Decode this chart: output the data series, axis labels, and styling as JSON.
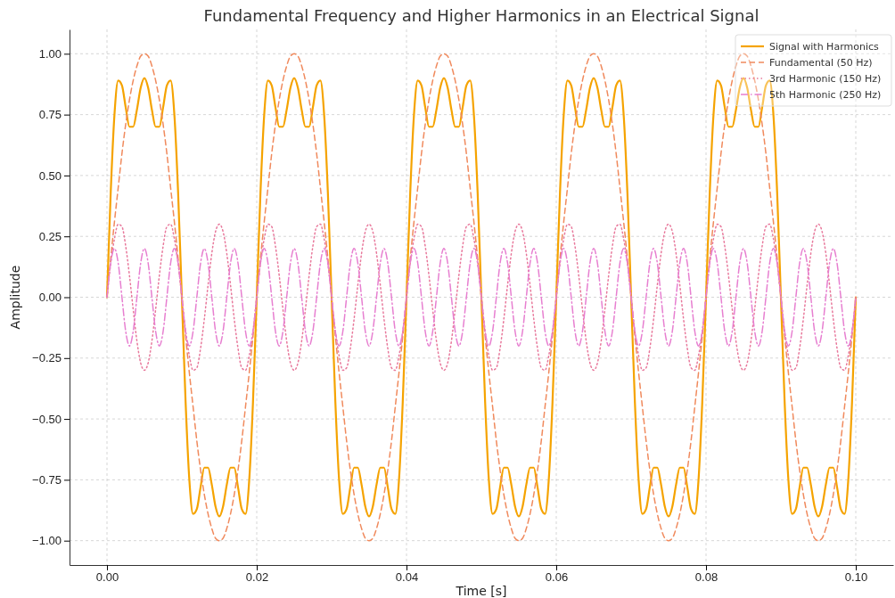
{
  "chart_data": {
    "type": "line",
    "title": "Fundamental Frequency and Higher Harmonics in an Electrical Signal",
    "xlabel": "Time [s]",
    "ylabel": "Amplitude",
    "x": [
      0,
      0.0005,
      0.001,
      0.0015,
      0.002,
      0.0025,
      0.003,
      0.0035,
      0.004,
      0.0045,
      0.005,
      0.0055,
      0.006,
      0.0065,
      0.007,
      0.0075,
      0.008,
      0.0085,
      0.009,
      0.0095,
      0.01,
      0.0105,
      0.011,
      0.0115,
      0.012,
      0.0125,
      0.013,
      0.0135,
      0.014,
      0.0145,
      0.015,
      0.0155,
      0.016,
      0.0165,
      0.017,
      0.0175,
      0.018,
      0.0185,
      0.019,
      0.0195,
      0.02,
      0.0205,
      0.021,
      0.0215,
      0.022,
      0.0225,
      0.023,
      0.0235,
      0.024,
      0.0245,
      0.025,
      0.0255,
      0.026,
      0.0265,
      0.027,
      0.0275,
      0.028,
      0.0285,
      0.029,
      0.0295,
      0.03,
      0.0305,
      0.031,
      0.0315,
      0.032,
      0.0325,
      0.033,
      0.0335,
      0.034,
      0.0345,
      0.035,
      0.0355,
      0.036,
      0.0365,
      0.037,
      0.0375,
      0.038,
      0.0385,
      0.039,
      0.0395,
      0.04,
      0.0405,
      0.041,
      0.0415,
      0.042,
      0.0425,
      0.043,
      0.0435,
      0.044,
      0.0445,
      0.045,
      0.0455,
      0.046,
      0.0465,
      0.047,
      0.0475,
      0.048,
      0.0485,
      0.049,
      0.0495,
      0.05,
      0.0505,
      0.051,
      0.0515,
      0.052,
      0.0525,
      0.053,
      0.0535,
      0.054,
      0.0545,
      0.055,
      0.0555,
      0.056,
      0.0565,
      0.057,
      0.0575,
      0.058,
      0.0585,
      0.059,
      0.0595,
      0.06,
      0.0605,
      0.061,
      0.0615,
      0.062,
      0.0625,
      0.063,
      0.0635,
      0.064,
      0.0645,
      0.065,
      0.0655,
      0.066,
      0.0665,
      0.067,
      0.0675,
      0.068,
      0.0685,
      0.069,
      0.0695,
      0.07,
      0.0705,
      0.071,
      0.0715,
      0.072,
      0.0725,
      0.073,
      0.0735,
      0.074,
      0.0745,
      0.075,
      0.0755,
      0.076,
      0.0765,
      0.077,
      0.0775,
      0.078,
      0.0785,
      0.079,
      0.0795,
      0.08,
      0.0805,
      0.081,
      0.0815,
      0.082,
      0.0825,
      0.083,
      0.0835,
      0.084,
      0.0845,
      0.085,
      0.0855,
      0.086,
      0.0865,
      0.087,
      0.0875,
      0.088,
      0.0885,
      0.089,
      0.0895,
      0.09,
      0.0905,
      0.091,
      0.0915,
      0.092,
      0.0925,
      0.093,
      0.0935,
      0.094,
      0.0945,
      0.095,
      0.0955,
      0.096,
      0.0965,
      0.097,
      0.0975,
      0.098,
      0.0985,
      0.099,
      0.0995,
      0.1
    ],
    "series": [
      {
        "name": "Signal with Harmonics",
        "color": "#f5a300",
        "line_style": "solid",
        "values": [
          0,
          0.43,
          0.75,
          0.89,
          0.87,
          0.78,
          0.7,
          0.7,
          0.77,
          0.86,
          0.9,
          0.86,
          0.77,
          0.7,
          0.7,
          0.78,
          0.87,
          0.89,
          0.75,
          0.43,
          0,
          -0.43,
          -0.75,
          -0.89,
          -0.87,
          -0.78,
          -0.7,
          -0.7,
          -0.77,
          -0.86,
          -0.9,
          -0.86,
          -0.77,
          -0.7,
          -0.7,
          -0.78,
          -0.87,
          -0.89,
          -0.75,
          -0.43,
          0,
          0.43,
          0.75,
          0.89,
          0.87,
          0.78,
          0.7,
          0.7,
          0.77,
          0.86,
          0.9,
          0.86,
          0.77,
          0.7,
          0.7,
          0.78,
          0.87,
          0.89,
          0.75,
          0.43,
          0,
          -0.43,
          -0.75,
          -0.89,
          -0.87,
          -0.78,
          -0.7,
          -0.7,
          -0.77,
          -0.86,
          -0.9,
          -0.86,
          -0.77,
          -0.7,
          -0.7,
          -0.78,
          -0.87,
          -0.89,
          -0.75,
          -0.43,
          0,
          0.43,
          0.75,
          0.89,
          0.87,
          0.78,
          0.7,
          0.7,
          0.77,
          0.86,
          0.9,
          0.86,
          0.77,
          0.7,
          0.7,
          0.78,
          0.87,
          0.89,
          0.75,
          0.43,
          0,
          -0.43,
          -0.75,
          -0.89,
          -0.87,
          -0.78,
          -0.7,
          -0.7,
          -0.77,
          -0.86,
          -0.9,
          -0.86,
          -0.77,
          -0.7,
          -0.7,
          -0.78,
          -0.87,
          -0.89,
          -0.75,
          -0.43,
          0,
          0.43,
          0.75,
          0.89,
          0.87,
          0.78,
          0.7,
          0.7,
          0.77,
          0.86,
          0.9,
          0.86,
          0.77,
          0.7,
          0.7,
          0.78,
          0.87,
          0.89,
          0.75,
          0.43,
          0,
          -0.43,
          -0.75,
          -0.89,
          -0.87,
          -0.78,
          -0.7,
          -0.7,
          -0.77,
          -0.86,
          -0.9,
          -0.86,
          -0.77,
          -0.7,
          -0.7,
          -0.78,
          -0.87,
          -0.89,
          -0.75,
          -0.43,
          0,
          0.43,
          0.75,
          0.89,
          0.87,
          0.78,
          0.7,
          0.7,
          0.77,
          0.86,
          0.9,
          0.86,
          0.77,
          0.7,
          0.7,
          0.78,
          0.87,
          0.89,
          0.75,
          0.43,
          0,
          -0.43,
          -0.75,
          -0.89,
          -0.87,
          -0.78,
          -0.7,
          -0.7,
          -0.77,
          -0.86,
          -0.9,
          -0.86,
          -0.77,
          -0.7,
          -0.7,
          -0.78,
          -0.87,
          -0.89,
          -0.75,
          -0.43,
          0
        ]
      },
      {
        "name": "Fundamental (50 Hz)",
        "color": "#f08a5d",
        "line_style": "dashed",
        "values": [
          0,
          0.16,
          0.31,
          0.45,
          0.59,
          0.71,
          0.81,
          0.89,
          0.95,
          0.99,
          1,
          0.99,
          0.95,
          0.89,
          0.81,
          0.71,
          0.59,
          0.45,
          0.31,
          0.16,
          0,
          -0.16,
          -0.31,
          -0.45,
          -0.59,
          -0.71,
          -0.81,
          -0.89,
          -0.95,
          -0.99,
          -1,
          -0.99,
          -0.95,
          -0.89,
          -0.81,
          -0.71,
          -0.59,
          -0.45,
          -0.31,
          -0.16,
          0,
          0.16,
          0.31,
          0.45,
          0.59,
          0.71,
          0.81,
          0.89,
          0.95,
          0.99,
          1,
          0.99,
          0.95,
          0.89,
          0.81,
          0.71,
          0.59,
          0.45,
          0.31,
          0.16,
          0,
          -0.16,
          -0.31,
          -0.45,
          -0.59,
          -0.71,
          -0.81,
          -0.89,
          -0.95,
          -0.99,
          -1,
          -0.99,
          -0.95,
          -0.89,
          -0.81,
          -0.71,
          -0.59,
          -0.45,
          -0.31,
          -0.16,
          0,
          0.16,
          0.31,
          0.45,
          0.59,
          0.71,
          0.81,
          0.89,
          0.95,
          0.99,
          1,
          0.99,
          0.95,
          0.89,
          0.81,
          0.71,
          0.59,
          0.45,
          0.31,
          0.16,
          0,
          -0.16,
          -0.31,
          -0.45,
          -0.59,
          -0.71,
          -0.81,
          -0.89,
          -0.95,
          -0.99,
          -1,
          -0.99,
          -0.95,
          -0.89,
          -0.81,
          -0.71,
          -0.59,
          -0.45,
          -0.31,
          -0.16,
          0,
          0.16,
          0.31,
          0.45,
          0.59,
          0.71,
          0.81,
          0.89,
          0.95,
          0.99,
          1,
          0.99,
          0.95,
          0.89,
          0.81,
          0.71,
          0.59,
          0.45,
          0.31,
          0.16,
          0,
          -0.16,
          -0.31,
          -0.45,
          -0.59,
          -0.71,
          -0.81,
          -0.89,
          -0.95,
          -0.99,
          -1,
          -0.99,
          -0.95,
          -0.89,
          -0.81,
          -0.71,
          -0.59,
          -0.45,
          -0.31,
          -0.16,
          0,
          0.16,
          0.31,
          0.45,
          0.59,
          0.71,
          0.81,
          0.89,
          0.95,
          0.99,
          1,
          0.99,
          0.95,
          0.89,
          0.81,
          0.71,
          0.59,
          0.45,
          0.31,
          0.16,
          0,
          -0.16,
          -0.31,
          -0.45,
          -0.59,
          -0.71,
          -0.81,
          -0.89,
          -0.95,
          -0.99,
          -1,
          -0.99,
          -0.95,
          -0.89,
          -0.81,
          -0.71,
          -0.59,
          -0.45,
          -0.31,
          -0.16,
          0
        ]
      },
      {
        "name": "3rd Harmonic (150 Hz)",
        "color": "#e8799c",
        "line_style": "dotted",
        "values": [
          0,
          0.14,
          0.24,
          0.3,
          0.29,
          0.21,
          0.09,
          -0.05,
          -0.18,
          -0.27,
          -0.3,
          -0.27,
          -0.18,
          -0.05,
          0.09,
          0.21,
          0.29,
          0.3,
          0.24,
          0.14,
          0,
          -0.14,
          -0.24,
          -0.3,
          -0.29,
          -0.21,
          -0.09,
          0.05,
          0.18,
          0.27,
          0.3,
          0.27,
          0.18,
          0.05,
          -0.09,
          -0.21,
          -0.29,
          -0.3,
          -0.24,
          -0.14,
          0,
          0.14,
          0.24,
          0.3,
          0.29,
          0.21,
          0.09,
          -0.05,
          -0.18,
          -0.27,
          -0.3,
          -0.27,
          -0.18,
          -0.05,
          0.09,
          0.21,
          0.29,
          0.3,
          0.24,
          0.14,
          0,
          -0.14,
          -0.24,
          -0.3,
          -0.29,
          -0.21,
          -0.09,
          0.05,
          0.18,
          0.27,
          0.3,
          0.27,
          0.18,
          0.05,
          -0.09,
          -0.21,
          -0.29,
          -0.3,
          -0.24,
          -0.14,
          0,
          0.14,
          0.24,
          0.3,
          0.29,
          0.21,
          0.09,
          -0.05,
          -0.18,
          -0.27,
          -0.3,
          -0.27,
          -0.18,
          -0.05,
          0.09,
          0.21,
          0.29,
          0.3,
          0.24,
          0.14,
          0,
          -0.14,
          -0.24,
          -0.3,
          -0.29,
          -0.21,
          -0.09,
          0.05,
          0.18,
          0.27,
          0.3,
          0.27,
          0.18,
          0.05,
          -0.09,
          -0.21,
          -0.29,
          -0.3,
          -0.24,
          -0.14,
          0,
          0.14,
          0.24,
          0.3,
          0.29,
          0.21,
          0.09,
          -0.05,
          -0.18,
          -0.27,
          -0.3,
          -0.27,
          -0.18,
          -0.05,
          0.09,
          0.21,
          0.29,
          0.3,
          0.24,
          0.14,
          0,
          -0.14,
          -0.24,
          -0.3,
          -0.29,
          -0.21,
          -0.09,
          0.05,
          0.18,
          0.27,
          0.3,
          0.27,
          0.18,
          0.05,
          -0.09,
          -0.21,
          -0.29,
          -0.3,
          -0.24,
          -0.14,
          0,
          0.14,
          0.24,
          0.3,
          0.29,
          0.21,
          0.09,
          -0.05,
          -0.18,
          -0.27,
          -0.3,
          -0.27,
          -0.18,
          -0.05,
          0.09,
          0.21,
          0.29,
          0.3,
          0.24,
          0.14,
          0,
          -0.14,
          -0.24,
          -0.3,
          -0.29,
          -0.21,
          -0.09,
          0.05,
          0.18,
          0.27,
          0.3,
          0.27,
          0.18,
          0.05,
          -0.09,
          -0.21,
          -0.29,
          -0.3,
          -0.24,
          -0.14,
          0
        ]
      },
      {
        "name": "5th Harmonic (250 Hz)",
        "color": "#e77fd0",
        "line_style": "dashdot",
        "values": [
          0,
          0.14,
          0.2,
          0.14,
          0,
          -0.14,
          -0.2,
          -0.14,
          0,
          0.14,
          0.2,
          0.14,
          0,
          -0.14,
          -0.2,
          -0.14,
          0,
          0.14,
          0.2,
          0.14,
          0,
          -0.14,
          -0.2,
          -0.14,
          0,
          0.14,
          0.2,
          0.14,
          0,
          -0.14,
          -0.2,
          -0.14,
          0,
          0.14,
          0.2,
          0.14,
          0,
          -0.14,
          -0.2,
          -0.14,
          0,
          0.14,
          0.2,
          0.14,
          0,
          -0.14,
          -0.2,
          -0.14,
          0,
          0.14,
          0.2,
          0.14,
          0,
          -0.14,
          -0.2,
          -0.14,
          0,
          0.14,
          0.2,
          0.14,
          0,
          -0.14,
          -0.2,
          -0.14,
          0,
          0.14,
          0.2,
          0.14,
          0,
          -0.14,
          -0.2,
          -0.14,
          0,
          0.14,
          0.2,
          0.14,
          0,
          -0.14,
          -0.2,
          -0.14,
          0,
          0.14,
          0.2,
          0.14,
          0,
          -0.14,
          -0.2,
          -0.14,
          0,
          0.14,
          0.2,
          0.14,
          0,
          -0.14,
          -0.2,
          -0.14,
          0,
          0.14,
          0.2,
          0.14,
          0,
          -0.14,
          -0.2,
          -0.14,
          0,
          0.14,
          0.2,
          0.14,
          0,
          -0.14,
          -0.2,
          -0.14,
          0,
          0.14,
          0.2,
          0.14,
          0,
          -0.14,
          -0.2,
          -0.14,
          0,
          0.14,
          0.2,
          0.14,
          0,
          -0.14,
          -0.2,
          -0.14,
          0,
          0.14,
          0.2,
          0.14,
          0,
          -0.14,
          -0.2,
          -0.14,
          0,
          0.14,
          0.2,
          0.14,
          0,
          -0.14,
          -0.2,
          -0.14,
          0,
          0.14,
          0.2,
          0.14,
          0,
          -0.14,
          -0.2,
          -0.14,
          0,
          0.14,
          0.2,
          0.14,
          0,
          -0.14,
          -0.2,
          -0.14,
          0,
          0.14,
          0.2,
          0.14,
          0,
          -0.14,
          -0.2,
          -0.14,
          0,
          0.14,
          0.2,
          0.14,
          0,
          -0.14,
          -0.2,
          -0.14,
          0,
          0.14,
          0.2,
          0.14,
          0,
          -0.14,
          -0.2,
          -0.14,
          0,
          0.14,
          0.2,
          0.14,
          0,
          -0.14,
          -0.2,
          -0.14,
          0,
          0.14,
          0.2,
          0.14,
          0,
          -0.14,
          -0.2,
          -0.14,
          0
        ]
      }
    ],
    "xlim": [
      -0.005,
      0.105
    ],
    "xticks": [
      {
        "value": 0,
        "label": "0.00"
      },
      {
        "value": 0.02,
        "label": "0.02"
      },
      {
        "value": 0.04,
        "label": "0.04"
      },
      {
        "value": 0.06,
        "label": "0.06"
      },
      {
        "value": 0.08,
        "label": "0.08"
      },
      {
        "value": 0.1,
        "label": "0.10"
      }
    ],
    "ylim": [
      -1.1,
      1.1
    ],
    "yticks": [
      {
        "value": -1,
        "label": "−1.00"
      },
      {
        "value": -0.75,
        "label": "−0.75"
      },
      {
        "value": -0.5,
        "label": "−0.50"
      },
      {
        "value": -0.25,
        "label": "−0.25"
      },
      {
        "value": 0,
        "label": "0.00"
      },
      {
        "value": 0.25,
        "label": "0.25"
      },
      {
        "value": 0.5,
        "label": "0.50"
      },
      {
        "value": 0.75,
        "label": "0.75"
      },
      {
        "value": 1,
        "label": "1.00"
      }
    ],
    "grid": true,
    "legend": "top right",
    "marker": "none"
  }
}
